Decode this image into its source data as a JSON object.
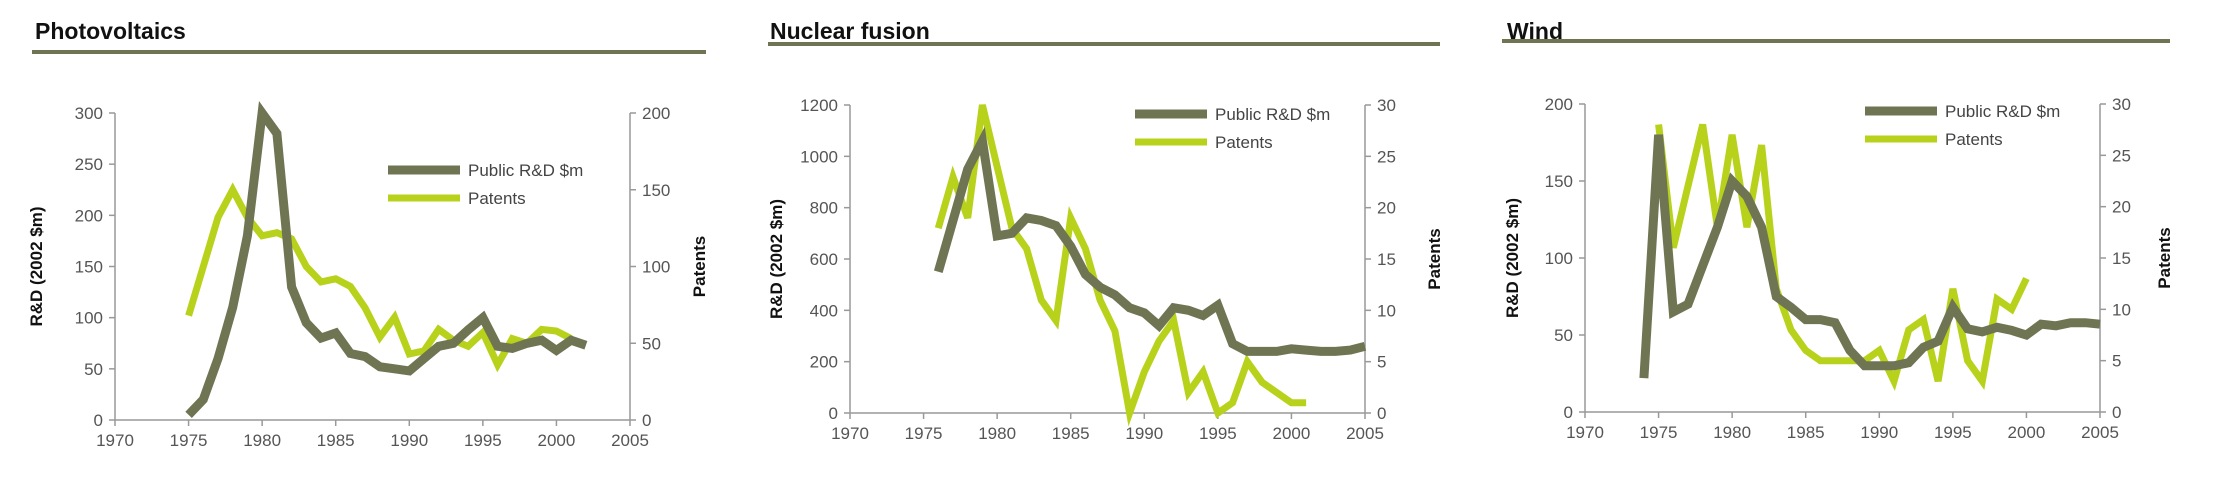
{
  "colors": {
    "rnd": "#6f7553",
    "patents": "#b8d21c",
    "axis": "#999999",
    "title_rule": "#6f7553"
  },
  "chart_data": [
    {
      "type": "line",
      "title": "Photovoltaics",
      "ylabel": "R&D (2002 $m)",
      "y2label": "Patents",
      "xlim": [
        1970,
        2005
      ],
      "ylim": [
        0,
        300
      ],
      "y2lim": [
        0,
        200
      ],
      "xticks": [
        "1970",
        "1975",
        "1980",
        "1985",
        "1990",
        "1995",
        "2000",
        "2005"
      ],
      "yticks": [
        "0",
        "50",
        "100",
        "150",
        "200",
        "250",
        "300"
      ],
      "y2ticks": [
        "0",
        "50",
        "100",
        "150",
        "200"
      ],
      "legend": "top-right",
      "series": [
        {
          "name": "Public R&D $m",
          "axis": "left",
          "x": [
            1975,
            1976,
            1977,
            1978,
            1979,
            1980,
            1981,
            1982,
            1983,
            1984,
            1985,
            1986,
            1987,
            1988,
            1989,
            1990,
            1991,
            1992,
            1993,
            1994,
            1995,
            1996,
            1997,
            1998,
            1999,
            2000,
            2001,
            2002
          ],
          "y": [
            5,
            20,
            60,
            110,
            180,
            300,
            280,
            130,
            95,
            80,
            85,
            65,
            62,
            52,
            50,
            48,
            60,
            72,
            75,
            88,
            100,
            72,
            70,
            75,
            78,
            68,
            78,
            73
          ]
        },
        {
          "name": "Patents",
          "axis": "right",
          "x": [
            1975,
            1976,
            1977,
            1978,
            1979,
            1980,
            1981,
            1982,
            1983,
            1984,
            1985,
            1986,
            1987,
            1988,
            1989,
            1990,
            1991,
            1992,
            1993,
            1994,
            1995,
            1996,
            1997,
            1998,
            1999,
            2000,
            2001
          ],
          "y": [
            68,
            100,
            132,
            150,
            132,
            120,
            122,
            118,
            100,
            90,
            92,
            87,
            73,
            54,
            67,
            43,
            45,
            59,
            52,
            48,
            57,
            36,
            53,
            50,
            59,
            58,
            53
          ]
        }
      ]
    },
    {
      "type": "line",
      "title": "Nuclear fusion",
      "ylabel": "R&D (2002 $m)",
      "y2label": "Patents",
      "xlim": [
        1970,
        2005
      ],
      "ylim": [
        0,
        1200
      ],
      "y2lim": [
        0,
        30
      ],
      "xticks": [
        "1970",
        "1975",
        "1980",
        "1985",
        "1990",
        "1995",
        "2000",
        "2005"
      ],
      "yticks": [
        "0",
        "200",
        "400",
        "600",
        "800",
        "1000",
        "1200"
      ],
      "y2ticks": [
        "0",
        "5",
        "10",
        "15",
        "20",
        "25",
        "30"
      ],
      "legend": "top-right",
      "series": [
        {
          "name": "Public R&D $m",
          "axis": "left",
          "x": [
            1976,
            1977,
            1978,
            1979,
            1980,
            1981,
            1982,
            1983,
            1984,
            1985,
            1986,
            1987,
            1988,
            1989,
            1990,
            1991,
            1992,
            1993,
            1994,
            1995,
            1996,
            1997,
            1998,
            1999,
            2000,
            2001,
            2002,
            2003,
            2004,
            2005
          ],
          "y": [
            550,
            750,
            950,
            1060,
            690,
            700,
            760,
            750,
            730,
            650,
            540,
            490,
            460,
            410,
            390,
            340,
            410,
            400,
            380,
            420,
            270,
            240,
            240,
            240,
            250,
            245,
            240,
            240,
            245,
            260
          ]
        },
        {
          "name": "Patents",
          "axis": "right",
          "x": [
            1976,
            1977,
            1978,
            1979,
            1980,
            1981,
            1982,
            1983,
            1984,
            1985,
            1986,
            1987,
            1988,
            1989,
            1990,
            1991,
            1992,
            1993,
            1994,
            1995,
            1996,
            1997,
            1998,
            1999,
            2000,
            2001
          ],
          "y": [
            18,
            23,
            19,
            30,
            24,
            18,
            16,
            11,
            9,
            19,
            16,
            11,
            8,
            0,
            4,
            7,
            9,
            2,
            4,
            0,
            1,
            5,
            3,
            2,
            1,
            1
          ]
        }
      ]
    },
    {
      "type": "line",
      "title": "Wind",
      "ylabel": "R&D (2002 $m)",
      "y2label": "Patents",
      "xlim": [
        1970,
        2005
      ],
      "ylim": [
        0,
        200
      ],
      "y2lim": [
        0,
        30
      ],
      "xticks": [
        "1970",
        "1975",
        "1980",
        "1985",
        "1990",
        "1995",
        "2000",
        "2005"
      ],
      "yticks": [
        "0",
        "50",
        "100",
        "150",
        "200"
      ],
      "y2ticks": [
        "0",
        "5",
        "10",
        "15",
        "20",
        "25",
        "30"
      ],
      "legend": "top-right",
      "series": [
        {
          "name": "Public R&D $m",
          "axis": "left",
          "x": [
            1974,
            1975,
            1976,
            1977,
            1978,
            1979,
            1980,
            1981,
            1982,
            1983,
            1984,
            1985,
            1986,
            1987,
            1988,
            1989,
            1990,
            1991,
            1992,
            1993,
            1994,
            1995,
            1996,
            1997,
            1998,
            1999,
            2000,
            2001,
            2002,
            2003,
            2004,
            2005
          ],
          "y": [
            22,
            180,
            65,
            70,
            95,
            120,
            150,
            140,
            120,
            75,
            68,
            60,
            60,
            58,
            40,
            30,
            30,
            30,
            32,
            42,
            46,
            68,
            54,
            52,
            55,
            53,
            50,
            57,
            56,
            58,
            58,
            57
          ]
        },
        {
          "name": "Patents",
          "axis": "right",
          "x": [
            1975,
            1976,
            1977,
            1978,
            1979,
            1980,
            1981,
            1982,
            1983,
            1984,
            1985,
            1986,
            1987,
            1988,
            1989,
            1990,
            1991,
            1992,
            1993,
            1994,
            1995,
            1996,
            1997,
            1998,
            1999,
            2000
          ],
          "y": [
            28,
            16,
            22,
            28,
            18,
            27,
            18,
            26,
            12,
            8,
            6,
            5,
            5,
            5,
            5,
            6,
            3,
            8,
            9,
            3,
            12,
            5,
            3,
            11,
            10,
            13
          ]
        }
      ]
    }
  ]
}
